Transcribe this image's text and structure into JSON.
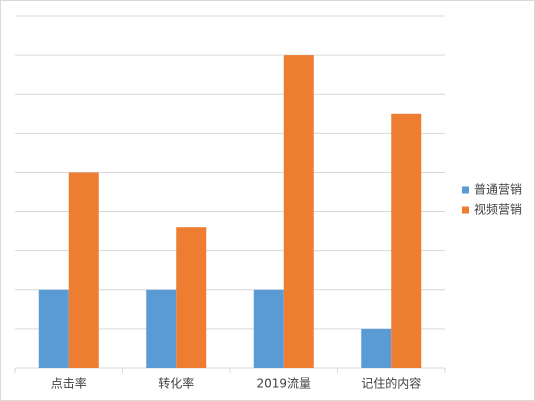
{
  "chart_data": {
    "type": "bar",
    "categories": [
      "点击率",
      "转化率",
      "2019流量",
      "记住的内容"
    ],
    "series": [
      {
        "name": "普通营销",
        "color": "#5b9bd5",
        "values": [
          2,
          2,
          2,
          1
        ]
      },
      {
        "name": "视频营销",
        "color": "#ed7d31",
        "values": [
          5,
          3.6,
          8,
          6.5
        ]
      }
    ],
    "ylim": [
      0,
      9
    ],
    "yticks": [
      0,
      1,
      2,
      3,
      4,
      5,
      6,
      7,
      8,
      9
    ],
    "grid": true,
    "legend": "right"
  }
}
